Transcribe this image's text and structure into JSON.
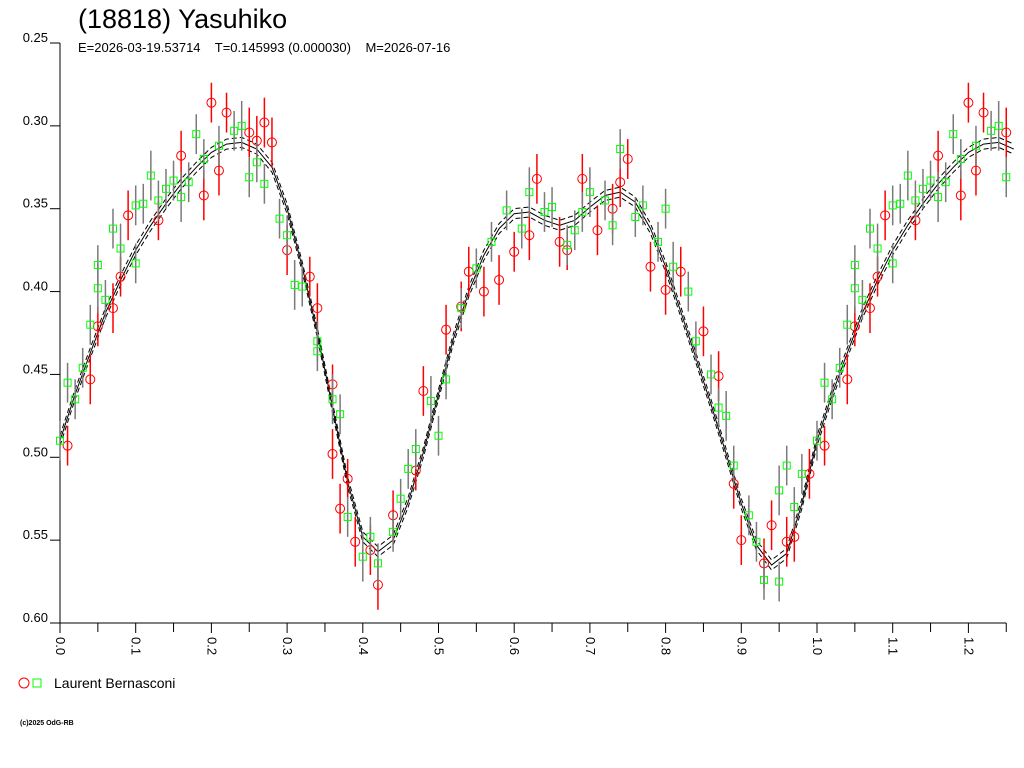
{
  "header": {
    "title": "(18818) Yasuhiko",
    "epoch": "E=2026-03-19.53714",
    "period": "T=0.145993 (0.000030)",
    "mid": "M=2026-07-16"
  },
  "legend": {
    "label": "Laurent Bernasconi",
    "red_color": "#ff0000",
    "green_color": "#00ff00"
  },
  "footer": {
    "copyright": "(c)2025 OdG-RB"
  },
  "chart_data": {
    "type": "scatter",
    "title": "(18818) Yasuhiko",
    "xlabel": "",
    "ylabel": "",
    "xlim": [
      0,
      1.25
    ],
    "ylim": [
      0.25,
      0.6
    ],
    "y_inverted": true,
    "xticks": [
      "0.0",
      "0.1",
      "0.2",
      "0.3",
      "0.4",
      "0.5",
      "0.6",
      "0.7",
      "0.8",
      "0.9",
      "1.0",
      "1.1",
      "1.2"
    ],
    "yticks": [
      "0.25",
      "0.30",
      "0.35",
      "0.40",
      "0.45",
      "0.50",
      "0.55",
      "0.60"
    ],
    "fit_curve": [
      [
        0.0,
        0.49
      ],
      [
        0.02,
        0.462
      ],
      [
        0.04,
        0.437
      ],
      [
        0.06,
        0.413
      ],
      [
        0.08,
        0.393
      ],
      [
        0.1,
        0.375
      ],
      [
        0.12,
        0.36
      ],
      [
        0.14,
        0.347
      ],
      [
        0.16,
        0.335
      ],
      [
        0.18,
        0.325
      ],
      [
        0.2,
        0.316
      ],
      [
        0.22,
        0.311
      ],
      [
        0.24,
        0.31
      ],
      [
        0.26,
        0.314
      ],
      [
        0.28,
        0.325
      ],
      [
        0.3,
        0.35
      ],
      [
        0.32,
        0.385
      ],
      [
        0.34,
        0.425
      ],
      [
        0.36,
        0.47
      ],
      [
        0.38,
        0.515
      ],
      [
        0.4,
        0.548
      ],
      [
        0.42,
        0.557
      ],
      [
        0.44,
        0.55
      ],
      [
        0.46,
        0.527
      ],
      [
        0.48,
        0.497
      ],
      [
        0.5,
        0.462
      ],
      [
        0.52,
        0.428
      ],
      [
        0.54,
        0.4
      ],
      [
        0.56,
        0.378
      ],
      [
        0.58,
        0.362
      ],
      [
        0.6,
        0.353
      ],
      [
        0.62,
        0.352
      ],
      [
        0.64,
        0.357
      ],
      [
        0.66,
        0.36
      ],
      [
        0.68,
        0.357
      ],
      [
        0.7,
        0.349
      ],
      [
        0.72,
        0.342
      ],
      [
        0.74,
        0.34
      ],
      [
        0.76,
        0.346
      ],
      [
        0.78,
        0.362
      ],
      [
        0.8,
        0.385
      ],
      [
        0.82,
        0.412
      ],
      [
        0.84,
        0.44
      ],
      [
        0.86,
        0.468
      ],
      [
        0.88,
        0.498
      ],
      [
        0.9,
        0.528
      ],
      [
        0.92,
        0.553
      ],
      [
        0.94,
        0.565
      ],
      [
        0.96,
        0.558
      ],
      [
        0.98,
        0.528
      ],
      [
        1.0,
        0.49
      ]
    ],
    "series": [
      {
        "name": "Laurent Bernasconi (session 1)",
        "marker": "circle",
        "color": "#ff0000",
        "points": [
          [
            0.01,
            0.493,
            0.012
          ],
          [
            0.04,
            0.453,
            0.015
          ],
          [
            0.05,
            0.421,
            0.012
          ],
          [
            0.07,
            0.41,
            0.015
          ],
          [
            0.08,
            0.391,
            0.012
          ],
          [
            0.09,
            0.354,
            0.015
          ],
          [
            0.13,
            0.357,
            0.012
          ],
          [
            0.16,
            0.318,
            0.015
          ],
          [
            0.19,
            0.342,
            0.015
          ],
          [
            0.2,
            0.286,
            0.012
          ],
          [
            0.21,
            0.327,
            0.015
          ],
          [
            0.22,
            0.292,
            0.012
          ],
          [
            0.25,
            0.304,
            0.015
          ],
          [
            0.26,
            0.309,
            0.015
          ],
          [
            0.27,
            0.298,
            0.015
          ],
          [
            0.28,
            0.31,
            0.015
          ],
          [
            0.3,
            0.375,
            0.015
          ],
          [
            0.33,
            0.391,
            0.012
          ],
          [
            0.34,
            0.41,
            0.015
          ],
          [
            0.36,
            0.456,
            0.012
          ],
          [
            0.36,
            0.498,
            0.015
          ],
          [
            0.37,
            0.531,
            0.015
          ],
          [
            0.38,
            0.513,
            0.012
          ],
          [
            0.39,
            0.551,
            0.015
          ],
          [
            0.41,
            0.556,
            0.015
          ],
          [
            0.42,
            0.577,
            0.015
          ],
          [
            0.44,
            0.535,
            0.015
          ],
          [
            0.47,
            0.508,
            0.012
          ],
          [
            0.48,
            0.46,
            0.015
          ],
          [
            0.51,
            0.423,
            0.015
          ],
          [
            0.53,
            0.409,
            0.015
          ],
          [
            0.54,
            0.388,
            0.015
          ],
          [
            0.56,
            0.4,
            0.015
          ],
          [
            0.58,
            0.393,
            0.015
          ],
          [
            0.6,
            0.376,
            0.012
          ],
          [
            0.62,
            0.366,
            0.015
          ],
          [
            0.63,
            0.332,
            0.015
          ],
          [
            0.66,
            0.37,
            0.015
          ],
          [
            0.67,
            0.375,
            0.012
          ],
          [
            0.69,
            0.332,
            0.015
          ],
          [
            0.71,
            0.363,
            0.015
          ],
          [
            0.73,
            0.35,
            0.015
          ],
          [
            0.74,
            0.334,
            0.015
          ],
          [
            0.75,
            0.32,
            0.012
          ],
          [
            0.78,
            0.385,
            0.015
          ],
          [
            0.8,
            0.399,
            0.015
          ],
          [
            0.82,
            0.388,
            0.015
          ],
          [
            0.85,
            0.424,
            0.015
          ],
          [
            0.87,
            0.451,
            0.015
          ],
          [
            0.89,
            0.516,
            0.015
          ],
          [
            0.9,
            0.55,
            0.015
          ],
          [
            0.93,
            0.564,
            0.015
          ],
          [
            0.94,
            0.541,
            0.015
          ],
          [
            0.96,
            0.551,
            0.015
          ],
          [
            0.97,
            0.548,
            0.015
          ],
          [
            0.99,
            0.51,
            0.015
          ]
        ]
      },
      {
        "name": "Laurent Bernasconi (session 2)",
        "marker": "square",
        "color": "#00ff00",
        "points": [
          [
            0.0,
            0.49,
            0.012
          ],
          [
            0.01,
            0.455,
            0.012
          ],
          [
            0.02,
            0.465,
            0.012
          ],
          [
            0.03,
            0.446,
            0.012
          ],
          [
            0.04,
            0.42,
            0.012
          ],
          [
            0.05,
            0.398,
            0.015
          ],
          [
            0.05,
            0.384,
            0.012
          ],
          [
            0.06,
            0.405,
            0.012
          ],
          [
            0.07,
            0.362,
            0.012
          ],
          [
            0.08,
            0.374,
            0.015
          ],
          [
            0.1,
            0.383,
            0.012
          ],
          [
            0.1,
            0.348,
            0.012
          ],
          [
            0.11,
            0.347,
            0.012
          ],
          [
            0.12,
            0.33,
            0.015
          ],
          [
            0.13,
            0.345,
            0.012
          ],
          [
            0.14,
            0.338,
            0.012
          ],
          [
            0.15,
            0.333,
            0.012
          ],
          [
            0.16,
            0.343,
            0.015
          ],
          [
            0.17,
            0.334,
            0.012
          ],
          [
            0.18,
            0.305,
            0.012
          ],
          [
            0.19,
            0.32,
            0.012
          ],
          [
            0.21,
            0.312,
            0.012
          ],
          [
            0.23,
            0.303,
            0.012
          ],
          [
            0.24,
            0.3,
            0.015
          ],
          [
            0.25,
            0.331,
            0.012
          ],
          [
            0.26,
            0.322,
            0.012
          ],
          [
            0.27,
            0.335,
            0.012
          ],
          [
            0.29,
            0.356,
            0.012
          ],
          [
            0.3,
            0.366,
            0.012
          ],
          [
            0.31,
            0.396,
            0.015
          ],
          [
            0.32,
            0.397,
            0.012
          ],
          [
            0.34,
            0.43,
            0.012
          ],
          [
            0.34,
            0.436,
            0.012
          ],
          [
            0.36,
            0.465,
            0.015
          ],
          [
            0.37,
            0.474,
            0.012
          ],
          [
            0.38,
            0.536,
            0.012
          ],
          [
            0.4,
            0.56,
            0.015
          ],
          [
            0.41,
            0.548,
            0.012
          ],
          [
            0.42,
            0.564,
            0.012
          ],
          [
            0.44,
            0.545,
            0.012
          ],
          [
            0.45,
            0.525,
            0.012
          ],
          [
            0.46,
            0.507,
            0.012
          ],
          [
            0.47,
            0.495,
            0.012
          ],
          [
            0.49,
            0.466,
            0.015
          ],
          [
            0.5,
            0.487,
            0.012
          ],
          [
            0.51,
            0.453,
            0.012
          ],
          [
            0.53,
            0.41,
            0.012
          ],
          [
            0.55,
            0.386,
            0.012
          ],
          [
            0.57,
            0.37,
            0.012
          ],
          [
            0.59,
            0.351,
            0.012
          ],
          [
            0.61,
            0.362,
            0.012
          ],
          [
            0.62,
            0.34,
            0.015
          ],
          [
            0.64,
            0.352,
            0.012
          ],
          [
            0.65,
            0.349,
            0.012
          ],
          [
            0.67,
            0.372,
            0.012
          ],
          [
            0.68,
            0.363,
            0.012
          ],
          [
            0.69,
            0.352,
            0.012
          ],
          [
            0.7,
            0.34,
            0.015
          ],
          [
            0.72,
            0.345,
            0.012
          ],
          [
            0.73,
            0.36,
            0.012
          ],
          [
            0.74,
            0.314,
            0.012
          ],
          [
            0.76,
            0.355,
            0.012
          ],
          [
            0.77,
            0.348,
            0.012
          ],
          [
            0.79,
            0.37,
            0.012
          ],
          [
            0.8,
            0.35,
            0.012
          ],
          [
            0.81,
            0.385,
            0.015
          ],
          [
            0.83,
            0.4,
            0.012
          ],
          [
            0.84,
            0.43,
            0.012
          ],
          [
            0.86,
            0.45,
            0.012
          ],
          [
            0.87,
            0.47,
            0.012
          ],
          [
            0.88,
            0.475,
            0.015
          ],
          [
            0.89,
            0.505,
            0.012
          ],
          [
            0.91,
            0.535,
            0.012
          ],
          [
            0.92,
            0.551,
            0.012
          ],
          [
            0.93,
            0.574,
            0.012
          ],
          [
            0.95,
            0.52,
            0.015
          ],
          [
            0.95,
            0.575,
            0.012
          ],
          [
            0.96,
            0.505,
            0.012
          ],
          [
            0.97,
            0.53,
            0.012
          ],
          [
            0.98,
            0.51,
            0.012
          ]
        ]
      }
    ]
  }
}
